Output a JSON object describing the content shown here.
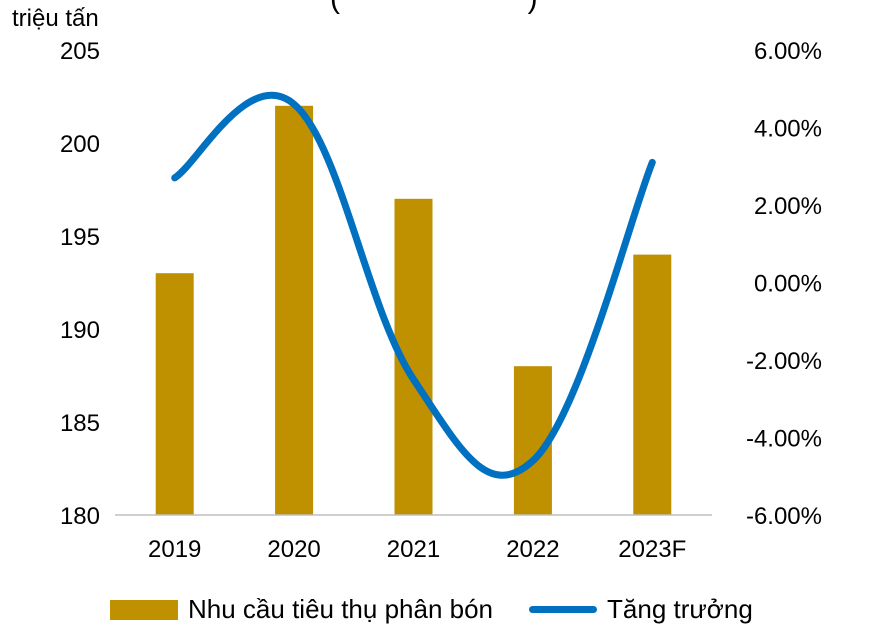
{
  "chart_data": {
    "type": "bar",
    "title": "",
    "y_left_unit": "triệu tấn",
    "categories": [
      "2019",
      "2020",
      "2021",
      "2022",
      "2023F"
    ],
    "series": [
      {
        "name": "Nhu cầu tiêu thụ phân bón",
        "kind": "bar",
        "axis": "left",
        "values": [
          193,
          202,
          197,
          188,
          194
        ],
        "color": "#bf9000"
      },
      {
        "name": "Tăng trưởng",
        "kind": "line",
        "axis": "right",
        "values": [
          2.7,
          4.6,
          -2.5,
          -4.6,
          3.1
        ],
        "color": "#0070c0"
      }
    ],
    "y_left": {
      "min": 180,
      "max": 205,
      "ticks": [
        "180",
        "185",
        "190",
        "195",
        "200",
        "205"
      ]
    },
    "y_right": {
      "min": -6,
      "max": 6,
      "ticks": [
        "-6.00%",
        "-4.00%",
        "-2.00%",
        "0.00%",
        "2.00%",
        "4.00%",
        "6.00%"
      ]
    },
    "grid": false,
    "legend_position": "bottom"
  }
}
